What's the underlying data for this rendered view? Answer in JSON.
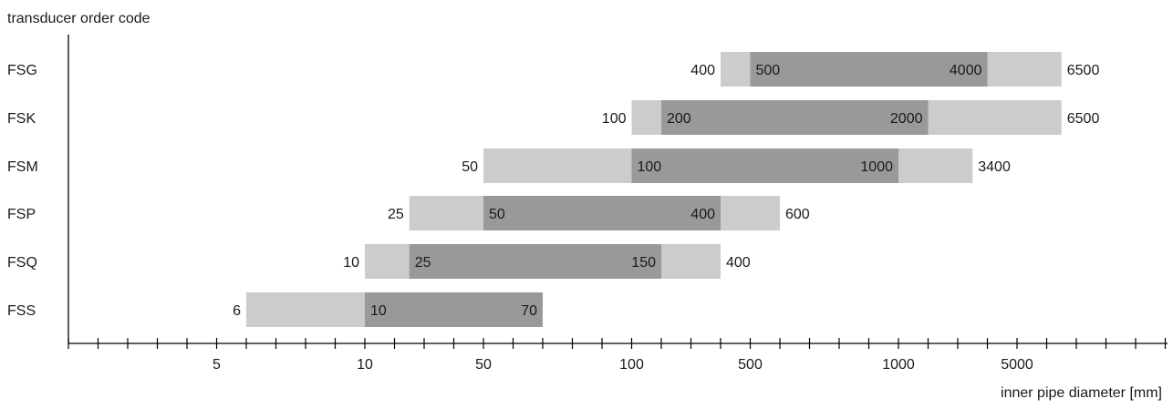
{
  "chart_data": {
    "type": "range-bar",
    "ylabel": "transducer order code",
    "xlabel": "inner pipe diameter [mm]",
    "tick_labels": [
      {
        "slot": 5,
        "text": "5"
      },
      {
        "slot": 10,
        "text": "10"
      },
      {
        "slot": 14,
        "text": "50"
      },
      {
        "slot": 19,
        "text": "100"
      },
      {
        "slot": 23,
        "text": "500"
      },
      {
        "slot": 28,
        "text": "1000"
      },
      {
        "slot": 32,
        "text": "5000"
      }
    ],
    "series": [
      {
        "code": "FSS",
        "outer": [
          6,
          null
        ],
        "outer_start_slot": 6,
        "outer_end_slot": 16,
        "inner": [
          10,
          70
        ],
        "inner_start_slot": 10,
        "inner_end_slot": 16
      },
      {
        "code": "FSQ",
        "outer": [
          10,
          400
        ],
        "outer_start_slot": 10,
        "outer_end_slot": 22,
        "inner": [
          25,
          150
        ],
        "inner_start_slot": 11.5,
        "inner_end_slot": 20
      },
      {
        "code": "FSP",
        "outer": [
          25,
          600
        ],
        "outer_start_slot": 11.5,
        "outer_end_slot": 24,
        "inner": [
          50,
          400
        ],
        "inner_start_slot": 14,
        "inner_end_slot": 22
      },
      {
        "code": "FSM",
        "outer": [
          50,
          3400
        ],
        "outer_start_slot": 14,
        "outer_end_slot": 30.5,
        "inner": [
          100,
          1000
        ],
        "inner_start_slot": 19,
        "inner_end_slot": 28
      },
      {
        "code": "FSK",
        "outer": [
          100,
          6500
        ],
        "outer_start_slot": 19,
        "outer_end_slot": 33.5,
        "inner": [
          200,
          2000
        ],
        "inner_start_slot": 20,
        "inner_end_slot": 29
      },
      {
        "code": "FSG",
        "outer": [
          400,
          6500
        ],
        "outer_start_slot": 22,
        "outer_end_slot": 33.5,
        "inner": [
          500,
          4000
        ],
        "inner_start_slot": 23,
        "inner_end_slot": 31
      }
    ],
    "colors": {
      "outer": "#cccccc",
      "inner": "#999999",
      "axis": "#000000"
    }
  }
}
